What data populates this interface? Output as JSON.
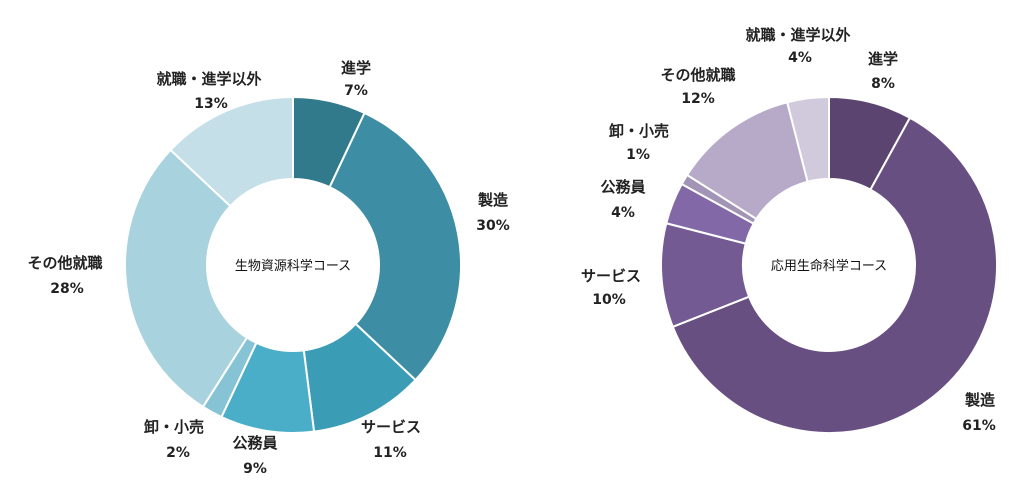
{
  "chart_data": [
    {
      "type": "pie",
      "variant": "donut",
      "center_label": "生物資源科学コース",
      "slices": [
        {
          "label": "進学",
          "value": 7,
          "value_label": "7%",
          "color": "#317a8c"
        },
        {
          "label": "製造",
          "value": 30,
          "value_label": "30%",
          "color": "#3d8ea4"
        },
        {
          "label": "サービス",
          "value": 11,
          "value_label": "11%",
          "color": "#3b9cb5"
        },
        {
          "label": "公務員",
          "value": 9,
          "value_label": "9%",
          "color": "#4aaec9"
        },
        {
          "label": "卸・小売",
          "value": 2,
          "value_label": "2%",
          "color": "#86c3d4"
        },
        {
          "label": "その他就職",
          "value": 28,
          "value_label": "28%",
          "color": "#a7d2de"
        },
        {
          "label": "就職・進学以外",
          "value": 13,
          "value_label": "13%",
          "color": "#c4dfe7"
        }
      ]
    },
    {
      "type": "pie",
      "variant": "donut",
      "center_label": "応用生命科学コース",
      "slices": [
        {
          "label": "進学",
          "value": 8,
          "value_label": "8%",
          "color": "#5c4470"
        },
        {
          "label": "製造",
          "value": 61,
          "value_label": "61%",
          "color": "#684f82"
        },
        {
          "label": "サービス",
          "value": 10,
          "value_label": "10%",
          "color": "#735a93"
        },
        {
          "label": "公務員",
          "value": 4,
          "value_label": "4%",
          "color": "#8368a8"
        },
        {
          "label": "卸・小売",
          "value": 1,
          "value_label": "1%",
          "color": "#a294b6"
        },
        {
          "label": "その他就職",
          "value": 12,
          "value_label": "12%",
          "color": "#b6aac8"
        },
        {
          "label": "就職・進学以外",
          "value": 4,
          "value_label": "4%",
          "color": "#d1cadc"
        }
      ]
    }
  ]
}
